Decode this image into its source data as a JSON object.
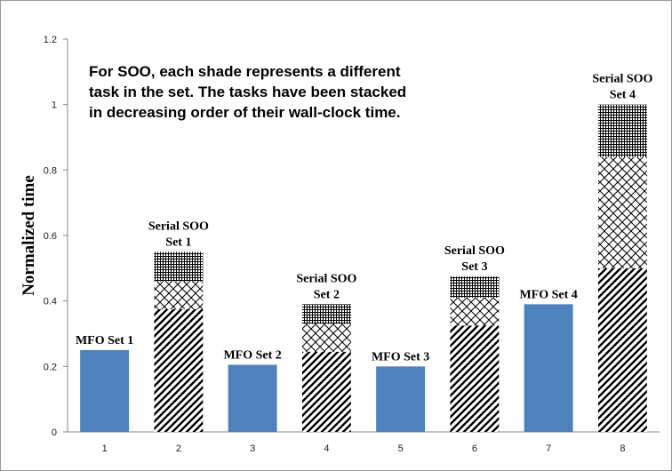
{
  "chart_data": {
    "type": "bar",
    "stacked": true,
    "ylabel": "Normalized  time",
    "ylim": [
      0,
      1.2
    ],
    "yticks": [
      "0",
      "0.2",
      "0.4",
      "0.6",
      "0.8",
      "1",
      "1.2"
    ],
    "categories": [
      "1",
      "2",
      "3",
      "4",
      "5",
      "6",
      "7",
      "8"
    ],
    "bar_labels": [
      [
        "MFO Set 1"
      ],
      [
        "Serial SOO",
        "Set 1"
      ],
      [
        "MFO Set 2"
      ],
      [
        "Serial SOO",
        "Set 2"
      ],
      [
        "MFO Set 3"
      ],
      [
        "Serial SOO",
        "Set 3"
      ],
      [
        "MFO Set 4"
      ],
      [
        "Serial SOO",
        "Set 4"
      ]
    ],
    "bars": [
      {
        "segments": [
          {
            "value": 0.25,
            "pattern": "solid"
          }
        ]
      },
      {
        "segments": [
          {
            "value": 0.375,
            "pattern": "diagonal"
          },
          {
            "value": 0.085,
            "pattern": "crosshatch"
          },
          {
            "value": 0.09,
            "pattern": "grid"
          }
        ]
      },
      {
        "segments": [
          {
            "value": 0.205,
            "pattern": "solid"
          }
        ]
      },
      {
        "segments": [
          {
            "value": 0.245,
            "pattern": "diagonal"
          },
          {
            "value": 0.085,
            "pattern": "crosshatch"
          },
          {
            "value": 0.06,
            "pattern": "grid"
          }
        ]
      },
      {
        "segments": [
          {
            "value": 0.2,
            "pattern": "solid"
          }
        ]
      },
      {
        "segments": [
          {
            "value": 0.325,
            "pattern": "diagonal"
          },
          {
            "value": 0.085,
            "pattern": "crosshatch"
          },
          {
            "value": 0.065,
            "pattern": "grid"
          }
        ]
      },
      {
        "segments": [
          {
            "value": 0.39,
            "pattern": "solid"
          }
        ]
      },
      {
        "segments": [
          {
            "value": 0.5,
            "pattern": "diagonal"
          },
          {
            "value": 0.34,
            "pattern": "crosshatch"
          },
          {
            "value": 0.16,
            "pattern": "grid"
          }
        ]
      }
    ],
    "annotation": [
      "For SOO, each shade represents a different",
      "task in the set. The tasks have been stacked",
      "in decreasing order of their wall-clock time."
    ],
    "grid": false,
    "legend": "none",
    "colors": {
      "mfo_bar": "#4f81bd",
      "pattern_ink": "#000000",
      "axis": "#868686"
    }
  }
}
